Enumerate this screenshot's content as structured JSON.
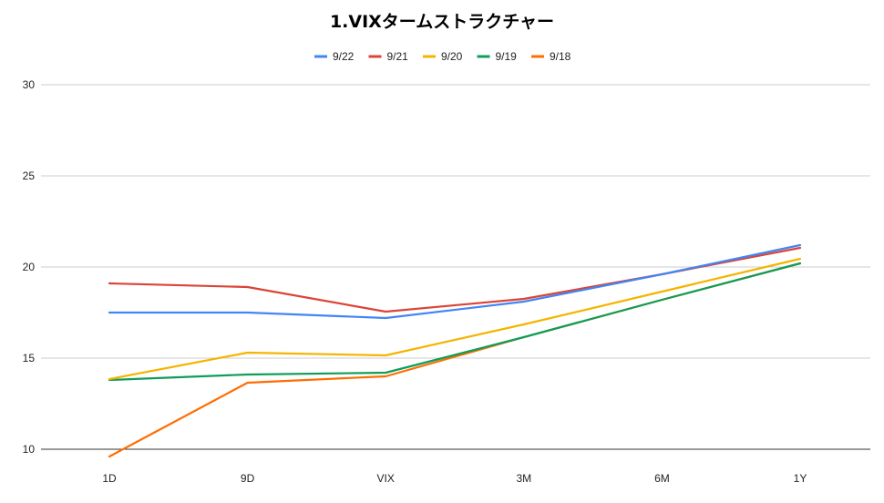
{
  "chart_data": {
    "type": "line",
    "title": "1.VIXタームストラクチャー",
    "xlabel": "",
    "ylabel": "",
    "categories": [
      "1D",
      "9D",
      "VIX",
      "3M",
      "6M",
      "1Y"
    ],
    "ylim": [
      10,
      30
    ],
    "yticks": [
      10,
      15,
      20,
      25,
      30
    ],
    "grid": true,
    "legend_position": "top",
    "series": [
      {
        "name": "9/22",
        "color": "#4285f4",
        "values": [
          17.5,
          17.5,
          17.2,
          18.1,
          19.6,
          21.2
        ]
      },
      {
        "name": "9/21",
        "color": "#db4437",
        "values": [
          19.1,
          18.9,
          17.55,
          18.25,
          19.6,
          21.05
        ]
      },
      {
        "name": "9/20",
        "color": "#f4b400",
        "values": [
          13.85,
          15.3,
          15.15,
          16.85,
          18.65,
          20.45
        ]
      },
      {
        "name": "9/19",
        "color": "#0f9d58",
        "values": [
          13.8,
          14.1,
          14.2,
          16.15,
          18.2,
          20.2
        ]
      },
      {
        "name": "9/18",
        "color": "#ff6d01",
        "values": [
          9.6,
          13.65,
          14.0,
          16.15,
          18.2,
          20.2
        ]
      }
    ]
  }
}
